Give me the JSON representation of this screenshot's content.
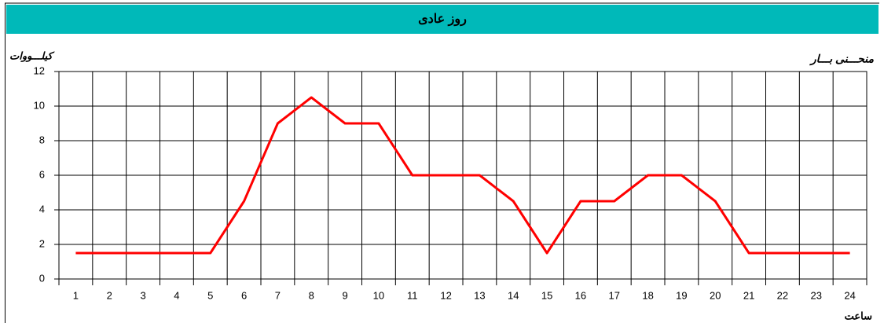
{
  "chart_data": {
    "type": "line",
    "title": "روز عادی",
    "subtitle": "منحـــنی بـــار",
    "y_label": "کیلـــووات",
    "x_label": "ساعت",
    "categories": [
      "1",
      "2",
      "3",
      "4",
      "5",
      "6",
      "7",
      "8",
      "9",
      "10",
      "11",
      "12",
      "13",
      "14",
      "15",
      "16",
      "17",
      "18",
      "19",
      "20",
      "21",
      "22",
      "23",
      "24"
    ],
    "series": [
      {
        "color": "#ff0000",
        "values": [
          1.5,
          1.5,
          1.5,
          1.5,
          1.5,
          4.5,
          9,
          10.5,
          9,
          9,
          6,
          6,
          6,
          4.5,
          1.5,
          4.5,
          4.5,
          6,
          6,
          4.5,
          1.5,
          1.5,
          1.5,
          1.5
        ]
      }
    ],
    "ylim": [
      0,
      12
    ],
    "yticks": [
      0,
      2,
      4,
      6,
      8,
      10,
      12
    ],
    "grid": true
  }
}
